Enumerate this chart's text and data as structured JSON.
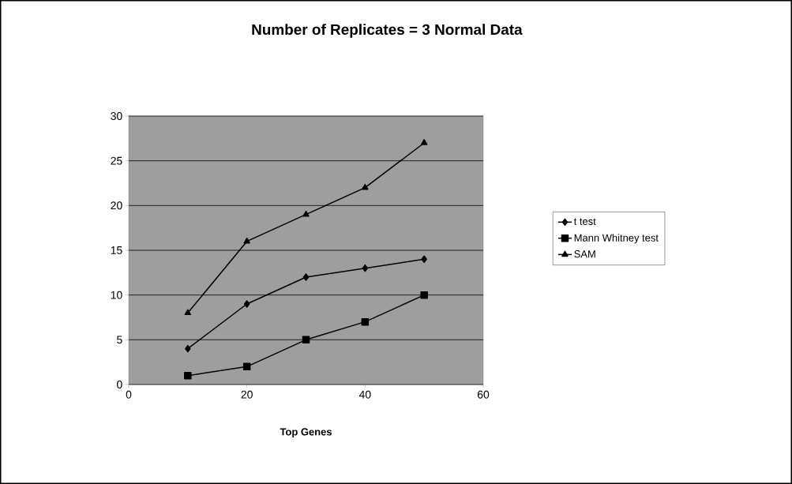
{
  "chart_data": {
    "type": "line",
    "title": "Number of Replicates = 3 Normal Data",
    "xlabel": "Top Genes",
    "x": [
      10,
      20,
      30,
      40,
      50
    ],
    "series": [
      {
        "name": "t test",
        "color": "#000000",
        "marker": "diamond",
        "values": [
          4,
          9,
          12,
          13,
          14
        ]
      },
      {
        "name": "Mann Whitney test",
        "color": "#000000",
        "marker": "square",
        "values": [
          1,
          2,
          5,
          7,
          10
        ]
      },
      {
        "name": "SAM",
        "color": "#000000",
        "marker": "triangle",
        "values": [
          8,
          16,
          19,
          22,
          27
        ]
      }
    ],
    "xlim": [
      0,
      60
    ],
    "ylim": [
      0,
      30
    ],
    "xticks": [
      0,
      20,
      40,
      60
    ],
    "yticks": [
      0,
      5,
      10,
      15,
      20,
      25,
      30
    ],
    "grid": "y",
    "legend": "right",
    "line_style": "solid"
  }
}
